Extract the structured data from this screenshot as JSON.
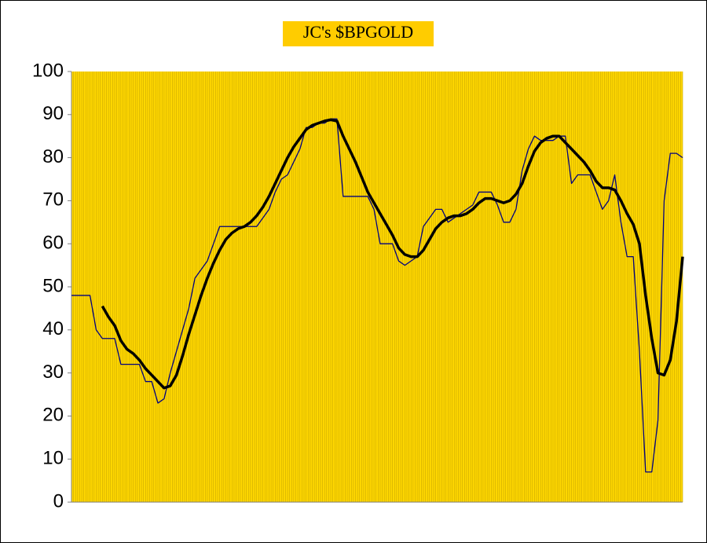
{
  "chart_data": {
    "type": "line",
    "title": "JC's $BPGOLD",
    "ylim": [
      0,
      100
    ],
    "yticks": [
      0,
      10,
      20,
      30,
      40,
      50,
      60,
      70,
      80,
      90,
      100
    ],
    "grid": true,
    "series": [
      {
        "color": "#000080",
        "width": 1.3,
        "values": [
          48,
          48,
          48,
          48,
          40,
          38,
          38,
          38,
          32,
          32,
          32,
          32,
          28,
          28,
          23,
          24,
          30,
          35,
          40,
          45,
          52,
          54,
          56,
          60,
          64,
          64,
          64,
          64,
          64,
          64,
          64,
          66,
          68,
          72,
          75,
          76,
          79,
          82,
          87,
          87,
          88,
          88,
          89,
          89,
          71,
          71,
          71,
          71,
          71,
          68,
          60,
          60,
          60,
          56,
          55,
          56,
          57,
          64,
          66,
          68,
          68,
          65,
          66,
          67,
          68,
          69,
          72,
          72,
          72,
          69,
          65,
          65,
          68,
          77,
          82,
          85,
          84,
          84,
          84,
          85,
          85,
          74,
          76,
          76,
          76,
          72,
          68,
          70,
          76,
          65,
          57,
          57,
          35,
          7,
          7,
          19,
          70,
          81,
          81,
          80
        ]
      },
      {
        "color": "#000000",
        "width": 3.5,
        "values": [
          null,
          null,
          null,
          null,
          null,
          45.5,
          43,
          41,
          37.5,
          35.5,
          34.5,
          33,
          31,
          29.5,
          28,
          26.5,
          27,
          29.5,
          34,
          39,
          43.5,
          48,
          52,
          55.5,
          58.5,
          61,
          62.5,
          63.5,
          64,
          65,
          66.5,
          68.5,
          71,
          74,
          77,
          80,
          82.5,
          84.5,
          86.5,
          87.5,
          88,
          88.5,
          88.8,
          88.5,
          85,
          82,
          79,
          75.5,
          72,
          69.5,
          67,
          64.5,
          62,
          59,
          57.5,
          57,
          57,
          58.5,
          61,
          63.5,
          65,
          66,
          66.5,
          66.5,
          67,
          68,
          69.5,
          70.5,
          70.5,
          70,
          69.5,
          70,
          71.5,
          74,
          78,
          81.5,
          83.5,
          84.5,
          85,
          85,
          83.5,
          82,
          80.5,
          79,
          77,
          74.5,
          73,
          73,
          72.5,
          70,
          67,
          64.5,
          60,
          48,
          38,
          30,
          29.5,
          33,
          42,
          57
        ]
      }
    ]
  }
}
